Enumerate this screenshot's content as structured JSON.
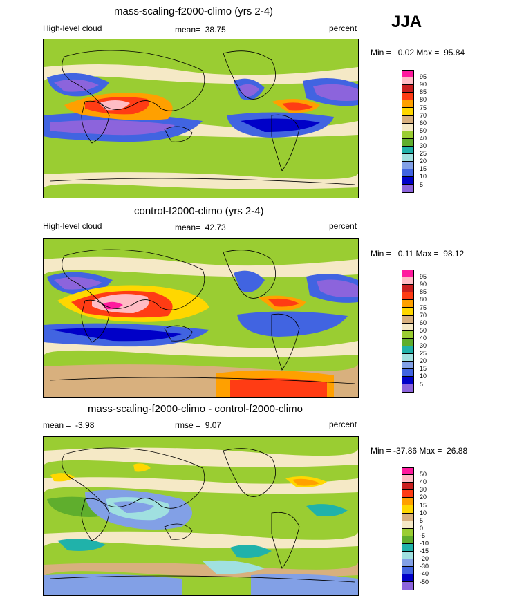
{
  "season": "JJA",
  "panels": [
    {
      "title": "mass-scaling-f2000-climo (yrs 2-4)",
      "left_label": "High-level cloud",
      "mean_label": "mean=",
      "mean_value": "38.75",
      "units": "percent",
      "min_label": "Min =",
      "min_value": "0.02",
      "max_label": "Max =",
      "max_value": "95.84",
      "levels": [
        "95",
        "90",
        "85",
        "80",
        "75",
        "70",
        "60",
        "50",
        "40",
        "30",
        "25",
        "20",
        "15",
        "10",
        "5"
      ],
      "colors": [
        "#ff1a9e",
        "#ffbcc4",
        "#c81e1e",
        "#ff3c14",
        "#ffa000",
        "#ffd700",
        "#d8b07e",
        "#f5e9c6",
        "#9acd32",
        "#5fae2d",
        "#20b2aa",
        "#a0e0e0",
        "#82a0e6",
        "#4164e1",
        "#0000c8",
        "#8c64dc"
      ]
    },
    {
      "title": "control-f2000-climo (yrs 2-4)",
      "left_label": "High-level cloud",
      "mean_label": "mean=",
      "mean_value": "42.73",
      "units": "percent",
      "min_label": "Min =",
      "min_value": "0.11",
      "max_label": "Max =",
      "max_value": "98.12",
      "levels": [
        "95",
        "90",
        "85",
        "80",
        "75",
        "70",
        "60",
        "50",
        "40",
        "30",
        "25",
        "20",
        "15",
        "10",
        "5"
      ],
      "colors": [
        "#ff1a9e",
        "#ffbcc4",
        "#c81e1e",
        "#ff3c14",
        "#ffa000",
        "#ffd700",
        "#d8b07e",
        "#f5e9c6",
        "#9acd32",
        "#5fae2d",
        "#20b2aa",
        "#a0e0e0",
        "#82a0e6",
        "#4164e1",
        "#0000c8",
        "#8c64dc"
      ]
    },
    {
      "title": "mass-scaling-f2000-climo - control-f2000-climo",
      "left_label": "mean =",
      "left_value": "-3.98",
      "mean_label": "rmse =",
      "mean_value": "9.07",
      "units": "percent",
      "min_label": "Min =",
      "min_value": "-37.86",
      "max_label": "Max =",
      "max_value": "26.88",
      "levels": [
        "50",
        "40",
        "30",
        "20",
        "15",
        "10",
        "5",
        "0",
        "-5",
        "-10",
        "-15",
        "-20",
        "-30",
        "-40",
        "-50"
      ],
      "colors": [
        "#ff1a9e",
        "#ffbcc4",
        "#c81e1e",
        "#ff3c14",
        "#ffa000",
        "#ffd700",
        "#d8b07e",
        "#f5e9c6",
        "#9acd32",
        "#5fae2d",
        "#20b2aa",
        "#a0e0e0",
        "#82a0e6",
        "#4164e1",
        "#0000c8",
        "#8c64dc"
      ]
    }
  ]
}
